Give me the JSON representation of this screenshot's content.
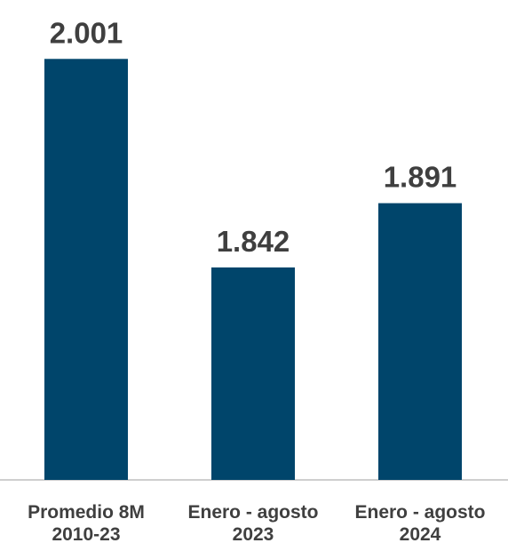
{
  "chart_data": {
    "type": "bar",
    "categories": [
      [
        "Promedio 8M",
        "2010-23"
      ],
      [
        "Enero - agosto",
        "2023"
      ],
      [
        "Enero - agosto",
        "2024"
      ]
    ],
    "values": [
      2001,
      1842,
      1891
    ],
    "value_labels": [
      "2.001",
      "1.842",
      "1.891"
    ],
    "bar_color": "#00456b",
    "axis_color": "#bfbfbf",
    "text_color": "#3f3f3f",
    "ylim": [
      1680,
      2010
    ],
    "grid": false,
    "legend": "none"
  }
}
